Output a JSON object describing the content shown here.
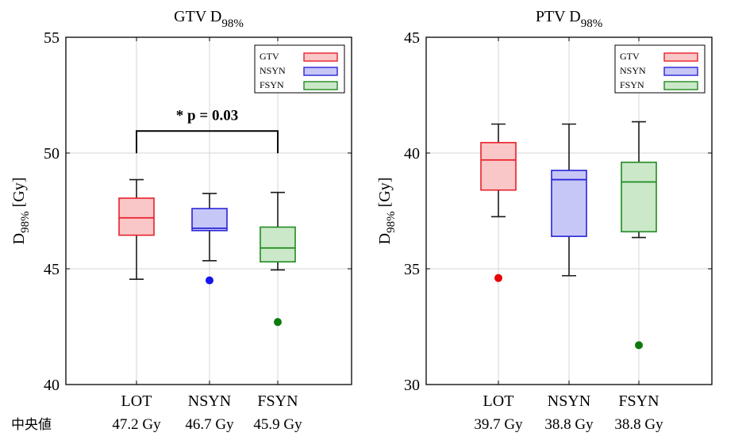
{
  "chart_data": [
    {
      "type": "box",
      "title_main": "GTV D",
      "title_sub": "98%",
      "ylabel_main": "D",
      "ylabel_sub": "98%",
      "ylabel_unit": " [Gy]",
      "ylim": [
        40,
        55
      ],
      "yticks": [
        40,
        45,
        50,
        55
      ],
      "grid": true,
      "legend_position": "top-right",
      "legend": [
        "GTV",
        "NSYN",
        "FSYN"
      ],
      "categories": [
        "LOT",
        "NSYN",
        "FSYN"
      ],
      "boxes": [
        {
          "category": "LOT",
          "whisker_low": 44.55,
          "q1": 46.45,
          "median": 47.2,
          "q3": 48.05,
          "whisker_high": 48.85,
          "outliers": []
        },
        {
          "category": "NSYN",
          "whisker_low": 45.35,
          "q1": 46.65,
          "median": 46.75,
          "q3": 47.6,
          "whisker_high": 48.25,
          "outliers": [
            44.5
          ]
        },
        {
          "category": "FSYN",
          "whisker_low": 44.95,
          "q1": 45.3,
          "median": 45.9,
          "q3": 46.8,
          "whisker_high": 48.3,
          "outliers": [
            42.7
          ]
        }
      ],
      "significance": {
        "from": "LOT",
        "to": "FSYN",
        "y": 50.95,
        "label": "* p = 0.03"
      },
      "median_row_label": "中央値",
      "median_labels": [
        "47.2  Gy",
        "46.7  Gy",
        "45.9  Gy"
      ]
    },
    {
      "type": "box",
      "title_main": "PTV D",
      "title_sub": "98%",
      "ylabel_main": "D",
      "ylabel_sub": "98%",
      "ylabel_unit": " [Gy]",
      "ylim": [
        30,
        45
      ],
      "yticks": [
        30,
        35,
        40,
        45
      ],
      "grid": true,
      "legend_position": "top-right",
      "legend": [
        "GTV",
        "NSYN",
        "FSYN"
      ],
      "categories": [
        "LOT",
        "NSYN",
        "FSYN"
      ],
      "boxes": [
        {
          "category": "LOT",
          "whisker_low": 37.25,
          "q1": 38.4,
          "median": 39.7,
          "q3": 40.45,
          "whisker_high": 41.25,
          "outliers": [
            34.6
          ]
        },
        {
          "category": "NSYN",
          "whisker_low": 34.7,
          "q1": 36.4,
          "median": 38.85,
          "q3": 39.25,
          "whisker_high": 41.25,
          "outliers": []
        },
        {
          "category": "FSYN",
          "whisker_low": 36.35,
          "q1": 36.6,
          "median": 38.75,
          "q3": 39.6,
          "whisker_high": 41.35,
          "outliers": [
            31.7
          ]
        }
      ],
      "median_labels": [
        "39.7 Gy",
        "38.8 Gy",
        "38.8 Gy"
      ]
    }
  ],
  "colors": {
    "series": [
      {
        "stroke": "#e8202a",
        "fill": "#f9c7c7",
        "dot": "#e60000"
      },
      {
        "stroke": "#2a24d8",
        "fill": "#c6c7f7",
        "dot": "#1515ee"
      },
      {
        "stroke": "#1f8a1f",
        "fill": "#cbe8c9",
        "dot": "#0e7a0e"
      }
    ],
    "axis": "#000000",
    "grid": "#d6d6d6",
    "whisker": "#1a1a1a"
  }
}
